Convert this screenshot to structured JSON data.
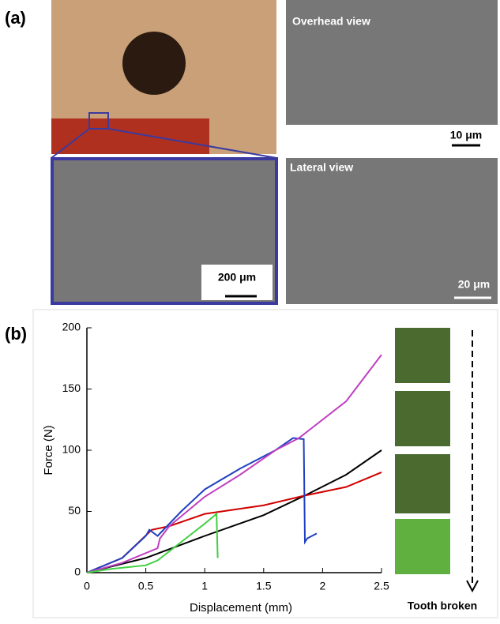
{
  "panel_a": {
    "label": "(a)",
    "images": [
      {
        "caption": "Overhead view",
        "scale": "10 μm"
      },
      {
        "caption": "Lateral view",
        "scale": "20 μm"
      },
      {
        "scale": "200 μm"
      }
    ]
  },
  "panel_b": {
    "label": "(b)",
    "side_label": "Tooth broken"
  },
  "chart_data": {
    "type": "line",
    "x_label": "Displacement (mm)",
    "y_label": "Force (N)",
    "xlim": [
      0,
      2.5
    ],
    "ylim": [
      0,
      200
    ],
    "xticks": [
      0,
      0.5,
      1,
      1.5,
      2,
      2.5
    ],
    "yticks": [
      0,
      50,
      100,
      150,
      200
    ],
    "grid": false,
    "series": [
      {
        "color": "#000000",
        "x": [
          0,
          0.5,
          1,
          1.5,
          1.85,
          2.2,
          2.5
        ],
        "values": [
          0,
          12,
          30,
          47,
          63,
          80,
          100
        ]
      },
      {
        "color": "#d00000",
        "x": [
          0,
          0.3,
          0.55,
          0.7,
          1,
          1.5,
          1.85,
          2.2,
          2.5
        ],
        "values": [
          0,
          12,
          35,
          38,
          48,
          55,
          63,
          70,
          82
        ]
      },
      {
        "color": "#2040c0",
        "x": [
          0,
          0.3,
          0.5,
          0.53,
          0.6,
          0.8,
          1,
          1.3,
          1.6,
          1.75,
          1.84,
          1.85,
          1.87,
          1.95
        ],
        "values": [
          0,
          12,
          30,
          35,
          30,
          50,
          68,
          85,
          100,
          110,
          109,
          25,
          28,
          32
        ]
      },
      {
        "color": "#c040c0",
        "x": [
          0,
          0.3,
          0.6,
          0.62,
          0.7,
          0.85,
          1,
          1.3,
          1.6,
          1.8,
          2.2,
          2.5
        ],
        "values": [
          0,
          8,
          20,
          28,
          38,
          50,
          62,
          80,
          100,
          110,
          140,
          178
        ]
      },
      {
        "color": "#40d040",
        "x": [
          0,
          0.2,
          0.5,
          0.6,
          0.8,
          1,
          1.1,
          1.11
        ],
        "values": [
          0,
          3,
          6,
          10,
          25,
          40,
          48,
          12
        ]
      }
    ]
  }
}
